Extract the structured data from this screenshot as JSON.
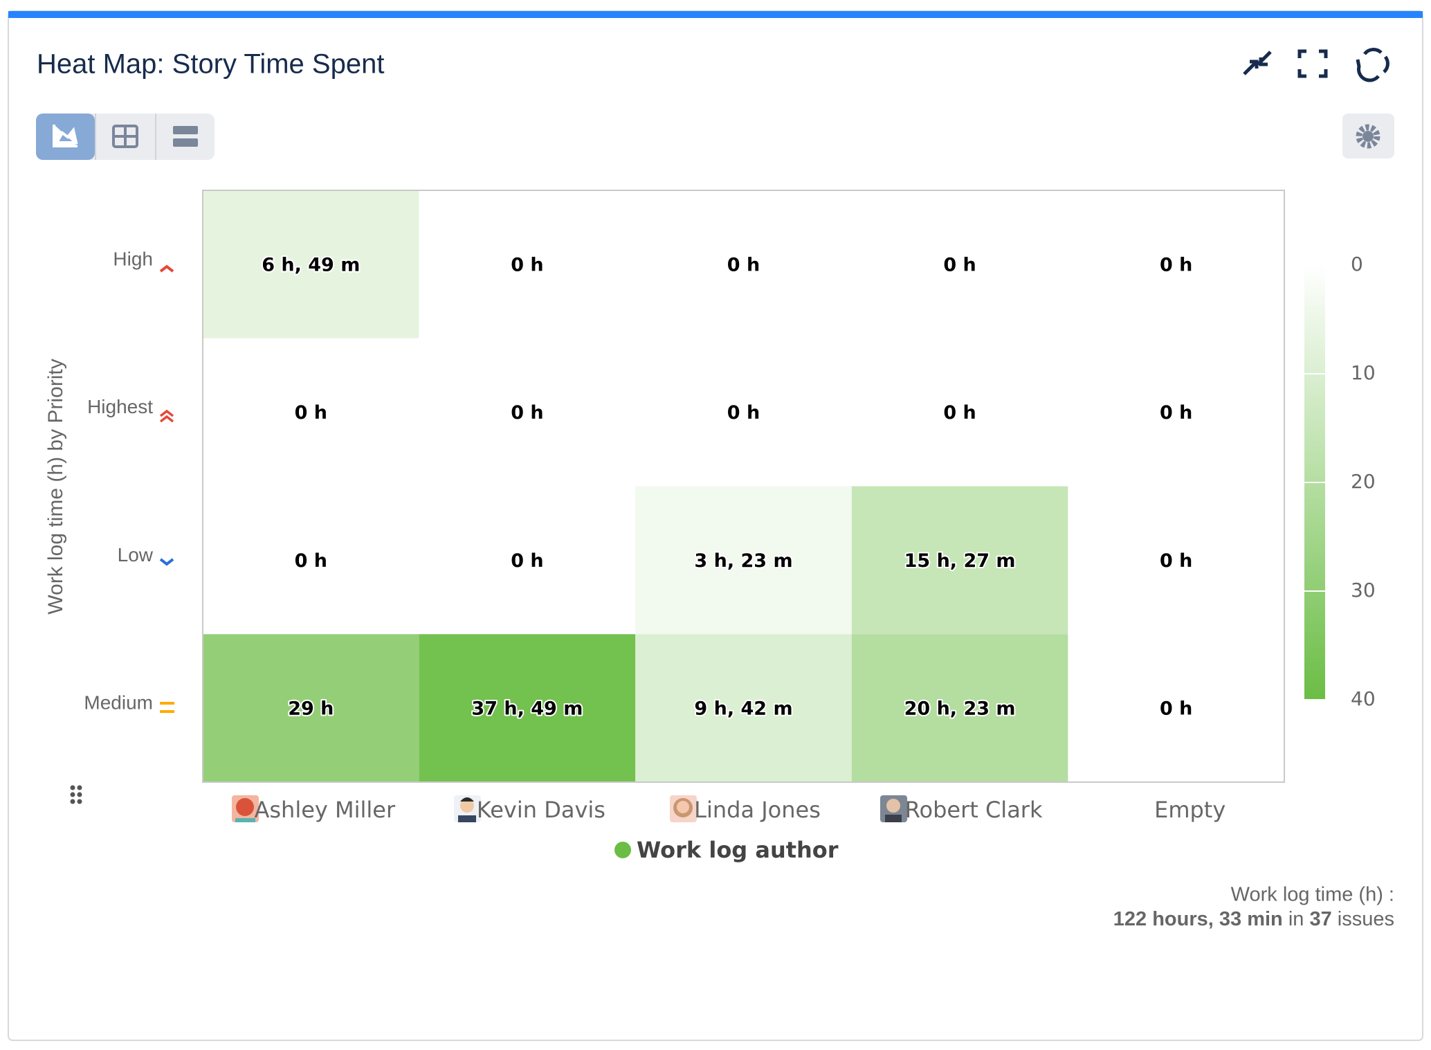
{
  "chart_data": {
    "type": "heatmap",
    "title": "Heat Map: Story Time Spent",
    "y_label": "Work log time (h) by Priority",
    "x": [
      "Ashley Miller",
      "Kevin Davis",
      "Linda Jones",
      "Robert Clark",
      "Empty"
    ],
    "y": [
      "High",
      "Highest",
      "Low",
      "Medium"
    ],
    "values": [
      [
        6.82,
        0,
        0,
        0,
        0
      ],
      [
        0,
        0,
        0,
        0,
        0
      ],
      [
        0,
        0,
        3.38,
        15.45,
        0
      ],
      [
        29,
        37.82,
        9.7,
        20.38,
        0
      ]
    ],
    "value_labels": [
      [
        "6 h, 49 m",
        "0 h",
        "0 h",
        "0 h",
        "0 h"
      ],
      [
        "0 h",
        "0 h",
        "0 h",
        "0 h",
        "0 h"
      ],
      [
        "0 h",
        "0 h",
        "3 h, 23 m",
        "15 h, 27 m",
        "0 h"
      ],
      [
        "29 h",
        "37 h, 49 m",
        "9 h, 42 m",
        "20 h, 23 m",
        "0 h"
      ]
    ],
    "zlim": [
      0,
      40
    ],
    "zticks": [
      0,
      10,
      20,
      30,
      40
    ],
    "color_min": "#ffffff",
    "color_max": "#6bbd45",
    "legend": "Work log author",
    "legend_color": "#6bbd45"
  },
  "footer": {
    "label": "Work log time (h) :",
    "total": "122 hours, 33 min",
    "joiner": "in",
    "count": "37",
    "unit": "issues"
  }
}
